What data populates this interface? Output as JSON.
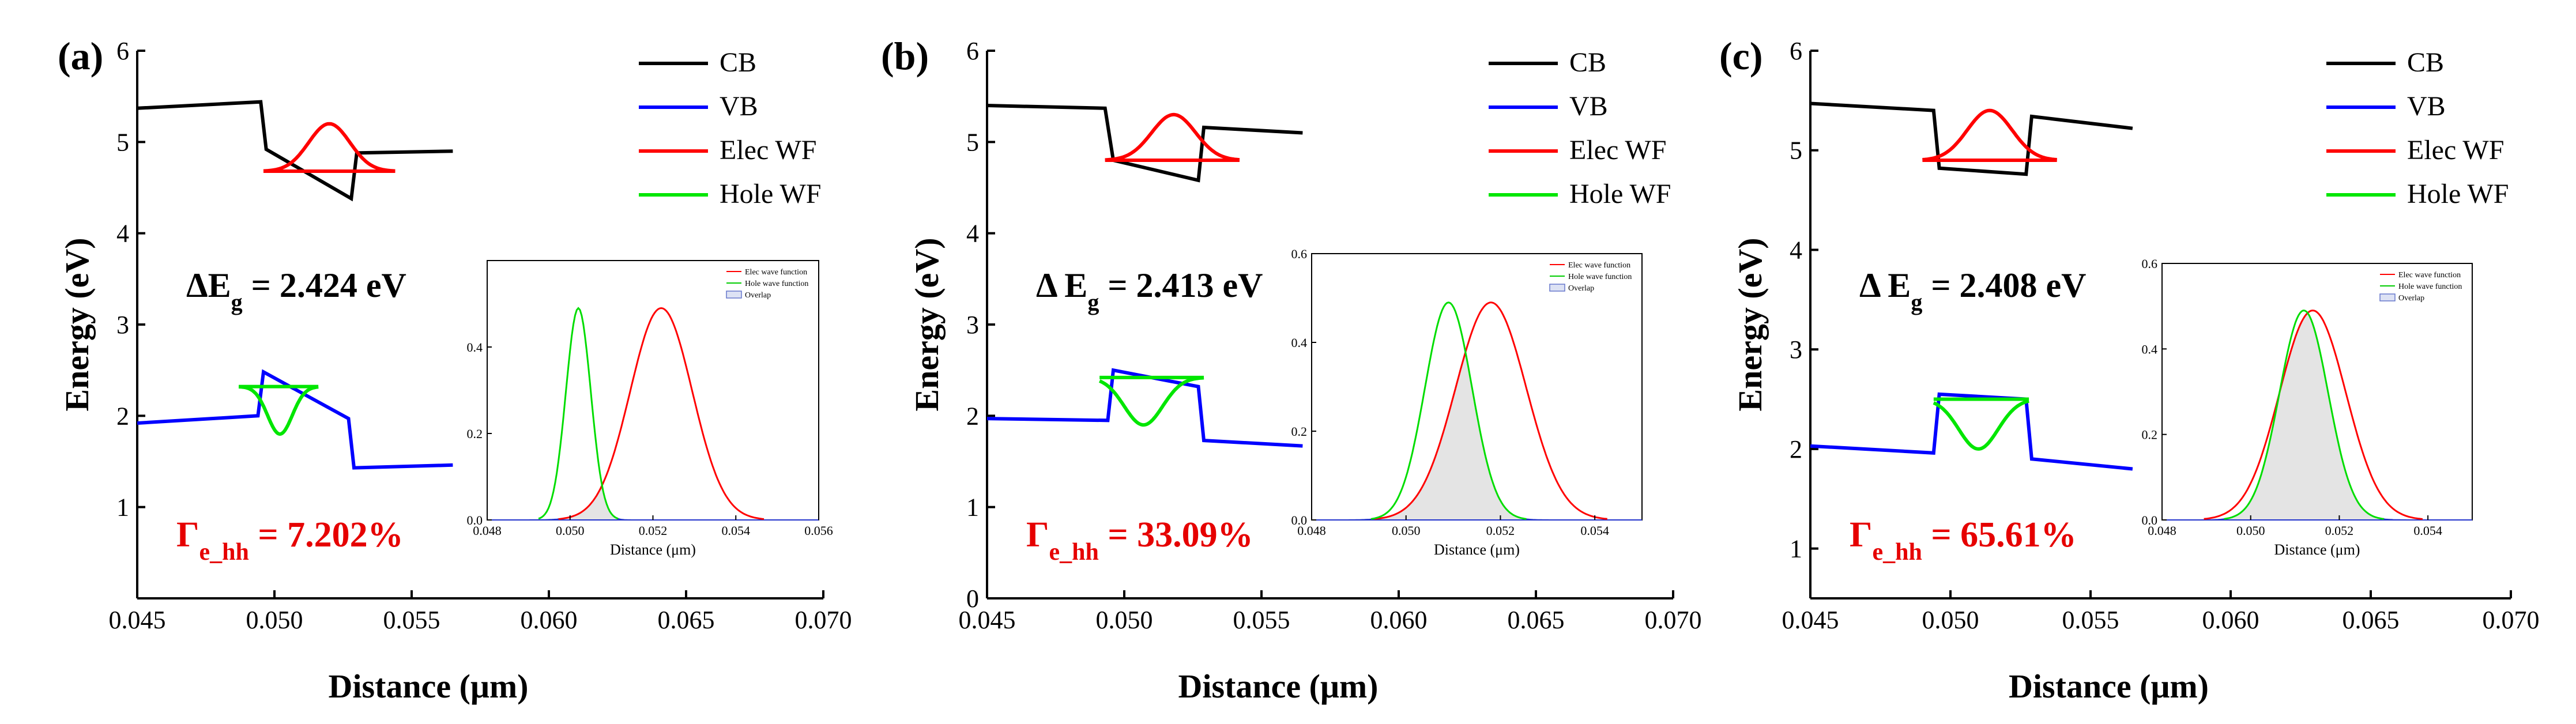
{
  "chart_data": [
    {
      "type": "line",
      "panel_label": "(a)",
      "xlabel": "Distance (μm)",
      "ylabel": "Energy (eV)",
      "xlim": [
        0.045,
        0.07
      ],
      "ylim": [
        0,
        6
      ],
      "x_ticks": [
        "0.045",
        "0.050",
        "0.055",
        "0.060",
        "0.065",
        "0.070"
      ],
      "y_ticks": [
        "1",
        "2",
        "3",
        "4",
        "5",
        "6"
      ],
      "legend": [
        {
          "label": "CB",
          "color": "#000000"
        },
        {
          "label": "VB",
          "color": "#0000ff"
        },
        {
          "label": "Elec WF",
          "color": "#ff0000"
        },
        {
          "label": "Hole WF",
          "color": "#00e600"
        }
      ],
      "gap_annotation": {
        "prefix": "ΔE",
        "sub": "g",
        "suffix": " = 2.424 eV"
      },
      "overlap_annotation": {
        "prefix": "Γ",
        "sub": "e_hh",
        "suffix": " = 7.202%"
      },
      "series": [
        {
          "name": "CB",
          "x": [
            0.045,
            0.0495,
            0.0497,
            0.0528,
            0.053,
            0.0565
          ],
          "y": [
            5.37,
            5.44,
            4.92,
            4.38,
            4.88,
            4.9
          ]
        },
        {
          "name": "VB",
          "x": [
            0.045,
            0.0494,
            0.0496,
            0.0527,
            0.0529,
            0.0565
          ],
          "y": [
            1.92,
            2.0,
            2.48,
            1.97,
            1.43,
            1.46
          ]
        },
        {
          "name": "Elec WF",
          "center": 0.052,
          "sigma": 0.00075,
          "baseline": 4.68,
          "peak": 5.2,
          "xmin": 0.0496,
          "xmax": 0.0544
        },
        {
          "name": "Hole WF",
          "center": 0.0502,
          "sigma": 0.00045,
          "baseline": 2.32,
          "peak": 1.8,
          "xmin": 0.0487,
          "xmax": 0.0516
        }
      ],
      "inset": {
        "xlim": [
          0.048,
          0.056
        ],
        "ylim": [
          0,
          0.6
        ],
        "x_ticks": [
          "0.048",
          "0.050",
          "0.052",
          "0.054",
          "0.056"
        ],
        "y_ticks": [
          "0.0",
          "0.2",
          "0.4"
        ],
        "xlabel": "Distance (μm)",
        "legend": [
          {
            "label": "Elec wave function",
            "color": "#ff0000"
          },
          {
            "label": "Hole wave function",
            "color": "#00cc00"
          },
          {
            "label": "Overlap",
            "color": "#6677cc"
          }
        ],
        "elec": {
          "center": 0.0522,
          "sigma": 0.00075,
          "peak": 0.49
        },
        "hole": {
          "center": 0.0502,
          "sigma": 0.0003,
          "peak": 0.49
        }
      }
    },
    {
      "type": "line",
      "panel_label": "(b)",
      "xlabel": "Distance (μm)",
      "ylabel": "Energy (eV)",
      "xlim": [
        0.045,
        0.07
      ],
      "ylim": [
        0,
        6
      ],
      "x_ticks": [
        "0.045",
        "0.050",
        "0.055",
        "0.060",
        "0.065",
        "0.070"
      ],
      "y_ticks": [
        "0",
        "1",
        "2",
        "3",
        "4",
        "5",
        "6"
      ],
      "legend": [
        {
          "label": "CB",
          "color": "#000000"
        },
        {
          "label": "VB",
          "color": "#0000ff"
        },
        {
          "label": "Elec WF",
          "color": "#ff0000"
        },
        {
          "label": "Hole WF",
          "color": "#00e600"
        }
      ],
      "gap_annotation": {
        "prefix": "Δ E",
        "sub": "g",
        "suffix": " = 2.413 eV"
      },
      "overlap_annotation": {
        "prefix": "Γ",
        "sub": "e_hh",
        "suffix": " = 33.09%"
      },
      "series": [
        {
          "name": "CB",
          "x": [
            0.045,
            0.0493,
            0.0496,
            0.0527,
            0.0529,
            0.0565
          ],
          "y": [
            5.4,
            5.37,
            4.8,
            4.58,
            5.16,
            5.1
          ]
        },
        {
          "name": "VB",
          "x": [
            0.045,
            0.0494,
            0.0496,
            0.0527,
            0.0529,
            0.0565
          ],
          "y": [
            1.97,
            1.95,
            2.5,
            2.32,
            1.73,
            1.67
          ]
        },
        {
          "name": "Elec WF",
          "center": 0.0518,
          "sigma": 0.0008,
          "baseline": 4.8,
          "peak": 5.3,
          "xmin": 0.0493,
          "xmax": 0.0542
        },
        {
          "name": "Hole WF",
          "center": 0.0507,
          "sigma": 0.0007,
          "baseline": 2.42,
          "peak": 1.9,
          "xmin": 0.0491,
          "xmax": 0.0529
        }
      ],
      "inset": {
        "xlim": [
          0.048,
          0.055
        ],
        "ylim": [
          0,
          0.6
        ],
        "x_ticks": [
          "0.048",
          "0.050",
          "0.052",
          "0.054"
        ],
        "y_ticks": [
          "0.0",
          "0.2",
          "0.4",
          "0.6"
        ],
        "xlabel": "Distance (μm)",
        "legend": [
          {
            "label": "Elec wave function",
            "color": "#ff0000"
          },
          {
            "label": "Hole wave function",
            "color": "#00cc00"
          },
          {
            "label": "Overlap",
            "color": "#6677cc"
          }
        ],
        "elec": {
          "center": 0.0518,
          "sigma": 0.00075,
          "peak": 0.49
        },
        "hole": {
          "center": 0.0509,
          "sigma": 0.0005,
          "peak": 0.49
        }
      }
    },
    {
      "type": "line",
      "panel_label": "(c)",
      "xlabel": "Distance (μm)",
      "ylabel": "Energy (eV)",
      "xlim": [
        0.045,
        0.07
      ],
      "ylim": [
        0.5,
        6
      ],
      "x_ticks": [
        "0.045",
        "0.050",
        "0.055",
        "0.060",
        "0.065",
        "0.070"
      ],
      "y_ticks": [
        "1",
        "2",
        "3",
        "4",
        "5",
        "6"
      ],
      "legend": [
        {
          "label": "CB",
          "color": "#000000"
        },
        {
          "label": "VB",
          "color": "#0000ff"
        },
        {
          "label": "Elec WF",
          "color": "#ff0000"
        },
        {
          "label": "Hole WF",
          "color": "#00e600"
        }
      ],
      "gap_annotation": {
        "prefix": "Δ E",
        "sub": "g",
        "suffix": " = 2.408 eV"
      },
      "overlap_annotation": {
        "prefix": "Γ",
        "sub": "e_hh",
        "suffix": " = 65.61%"
      },
      "series": [
        {
          "name": "CB",
          "x": [
            0.045,
            0.0494,
            0.0496,
            0.0527,
            0.0529,
            0.0565
          ],
          "y": [
            5.47,
            5.4,
            4.82,
            4.76,
            5.34,
            5.22
          ]
        },
        {
          "name": "VB",
          "x": [
            0.045,
            0.0494,
            0.0496,
            0.0527,
            0.0529,
            0.0565
          ],
          "y": [
            2.03,
            1.96,
            2.55,
            2.5,
            1.9,
            1.8
          ]
        },
        {
          "name": "Elec WF",
          "center": 0.0514,
          "sigma": 0.0008,
          "baseline": 4.9,
          "peak": 5.4,
          "xmin": 0.049,
          "xmax": 0.0538
        },
        {
          "name": "Hole WF",
          "center": 0.051,
          "sigma": 0.0007,
          "baseline": 2.5,
          "peak": 2.0,
          "xmin": 0.0494,
          "xmax": 0.0528
        }
      ],
      "inset": {
        "xlim": [
          0.048,
          0.055
        ],
        "ylim": [
          0,
          0.6
        ],
        "x_ticks": [
          "0.048",
          "0.050",
          "0.052",
          "0.054"
        ],
        "y_ticks": [
          "0.0",
          "0.2",
          "0.4",
          "0.6"
        ],
        "xlabel": "Distance (μm)",
        "legend": [
          {
            "label": "Elec wave function",
            "color": "#ff0000"
          },
          {
            "label": "Hole wave function",
            "color": "#00cc00"
          },
          {
            "label": "Overlap",
            "color": "#6677cc"
          }
        ],
        "elec": {
          "center": 0.0514,
          "sigma": 0.00075,
          "peak": 0.49
        },
        "hole": {
          "center": 0.0512,
          "sigma": 0.00055,
          "peak": 0.49
        }
      }
    }
  ]
}
